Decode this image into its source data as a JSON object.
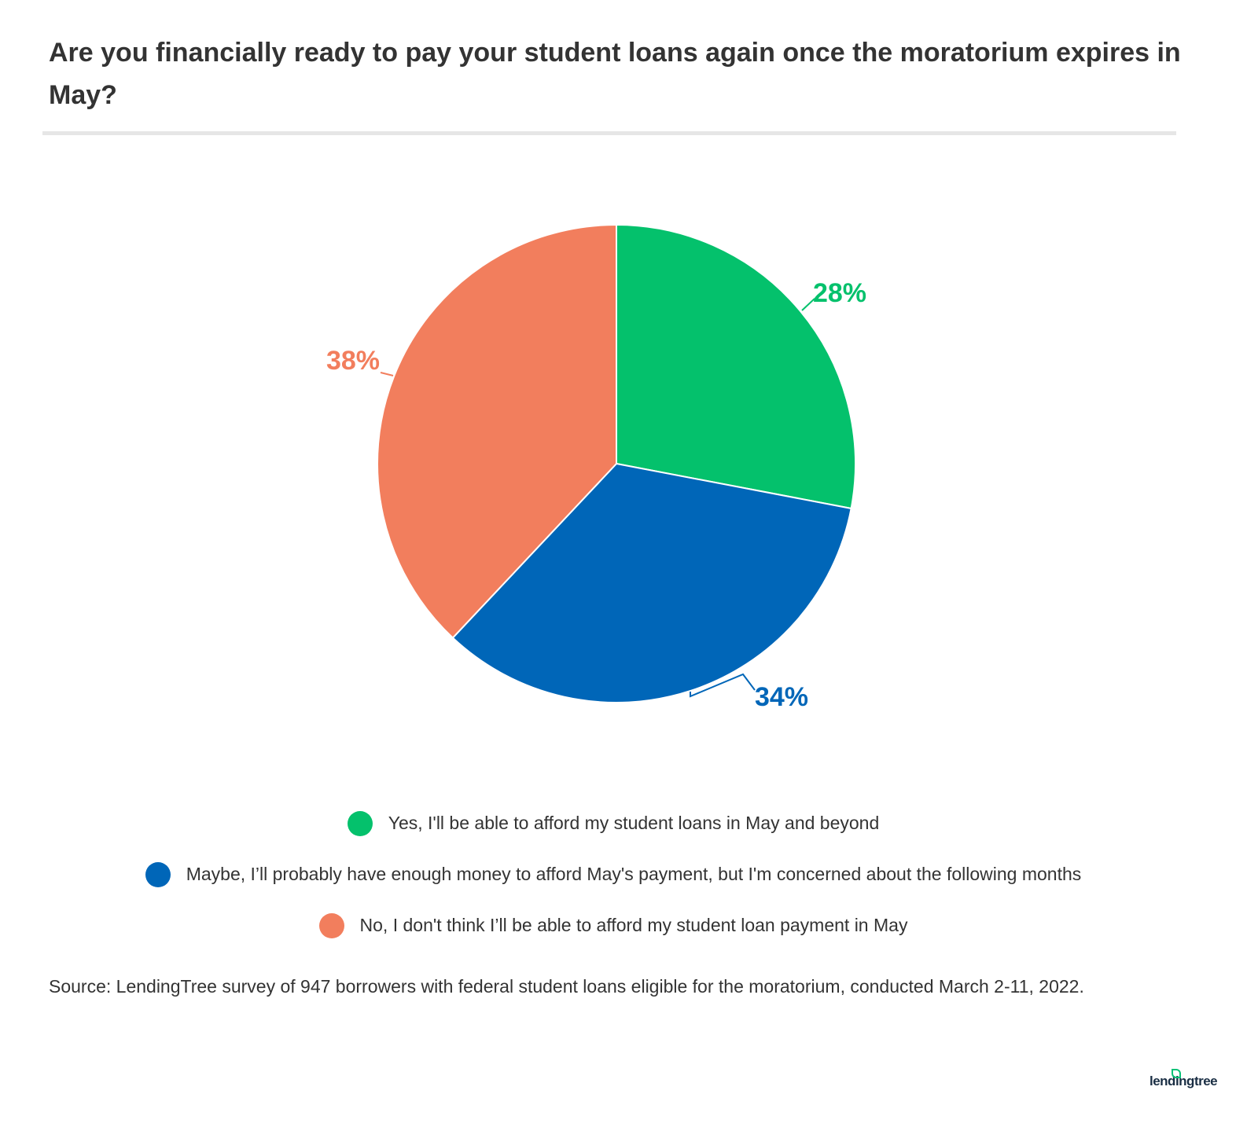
{
  "title": "Are you financially ready to pay your student loans again once the moratorium expires in May?",
  "chart_data": {
    "type": "pie",
    "title": "Are you financially ready to pay your student loans again once the moratorium expires in May?",
    "slices": [
      {
        "label": "Yes, I'll be able to afford my student loans in May and beyond",
        "value": 28,
        "display": "28%",
        "color": "#04c16c"
      },
      {
        "label": "Maybe, I’ll probably have enough money to afford May's payment, but I'm concerned about the following months",
        "value": 34,
        "display": "34%",
        "color": "#0066b8"
      },
      {
        "label": "No, I don't think I’ll be able to afford my student loan payment in May",
        "value": 38,
        "display": "38%",
        "color": "#f27e5d"
      }
    ],
    "legend_position": "bottom"
  },
  "source": "Source: LendingTree survey of 947 borrowers with federal student loans eligible for the moratorium, conducted March 2-11, 2022.",
  "logo": "lendingtree"
}
